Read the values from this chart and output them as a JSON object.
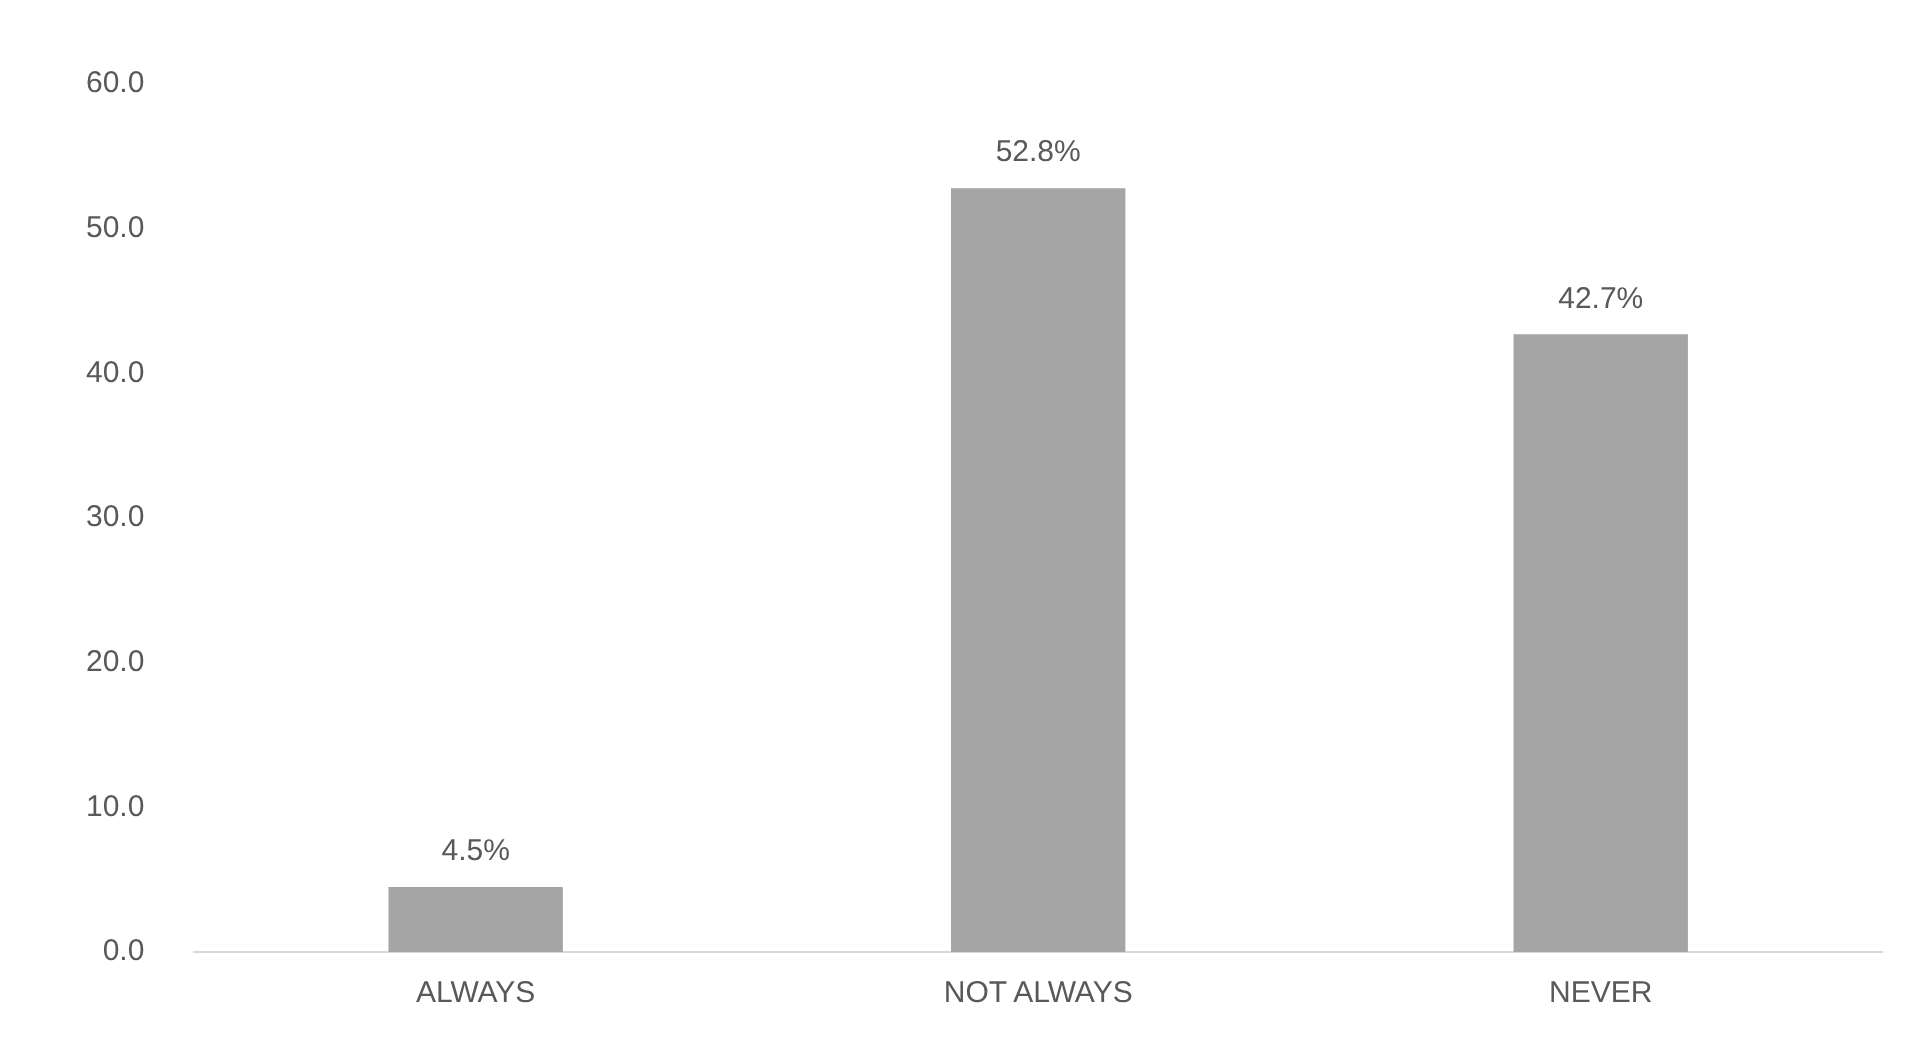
{
  "chart_data": {
    "type": "bar",
    "categories": [
      "ALWAYS",
      "NOT ALWAYS",
      "NEVER"
    ],
    "values": [
      4.5,
      52.8,
      42.7
    ],
    "color": "#a5a5a5",
    "value_labels": [
      "4.5%",
      "52.8%",
      "42.7%"
    ],
    "ylim": [
      0,
      60
    ],
    "yticks": [
      {
        "value": 0,
        "label": "0.0"
      },
      {
        "value": 10,
        "label": "10.0"
      },
      {
        "value": 20,
        "label": "20.0"
      },
      {
        "value": 30,
        "label": "30.0"
      },
      {
        "value": 40,
        "label": "40.0"
      },
      {
        "value": 50,
        "label": "50.0"
      },
      {
        "value": 60,
        "label": "60.0"
      }
    ],
    "grid": false,
    "legend": false
  }
}
